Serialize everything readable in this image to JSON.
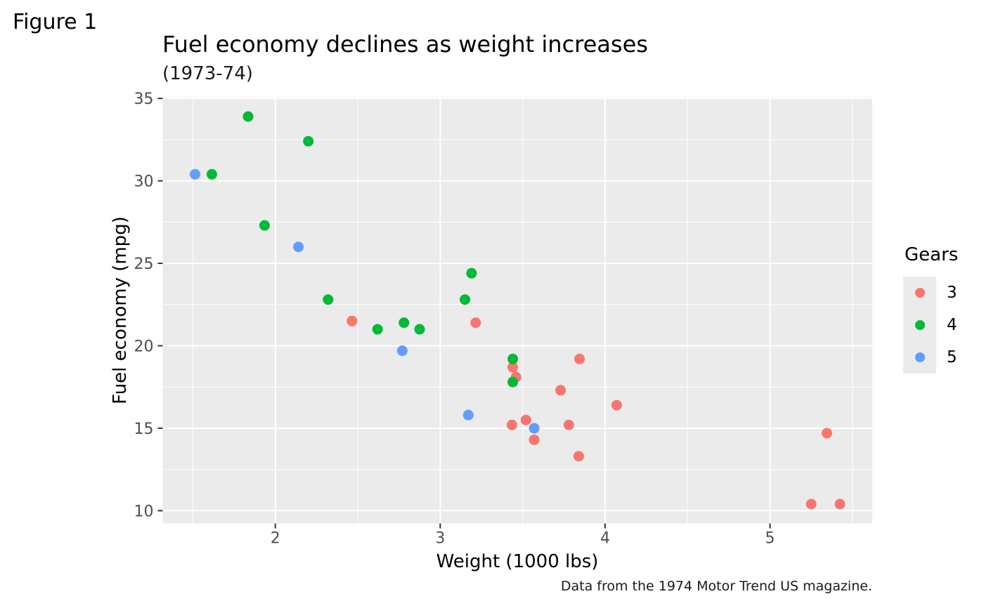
{
  "figure_tag": "Figure 1",
  "chart_data": {
    "type": "scatter",
    "title": "Fuel economy declines as weight increases",
    "subtitle": "(1973-74)",
    "caption": "Data from the 1974 Motor Trend US magazine.",
    "xlabel": "Weight (1000 lbs)",
    "ylabel": "Fuel economy (mpg)",
    "x_domain": [
      1.317,
      5.62
    ],
    "y_domain": [
      9.225,
      35.075
    ],
    "x_ticks": [
      "2",
      "3",
      "4",
      "5"
    ],
    "x_tick_values": [
      2,
      3,
      4,
      5
    ],
    "y_ticks": [
      "10",
      "15",
      "20",
      "25",
      "30",
      "35"
    ],
    "y_tick_values": [
      10,
      15,
      20,
      25,
      30,
      35
    ],
    "x_minor": [
      1.5,
      2.5,
      3.5,
      4.5,
      5.5
    ],
    "y_minor": [
      12.5,
      17.5,
      22.5,
      27.5,
      32.5
    ],
    "grid": true,
    "panel_bg": "#EBEBEB",
    "grid_color": "#FFFFFF",
    "tick_label_color": "#4d4d4d",
    "tick_mark_color": "#333333",
    "legend": {
      "title": "Gears",
      "position": "right"
    },
    "series": [
      {
        "name": "3",
        "color": "#F8766D",
        "points": [
          [
            2.465,
            21.5
          ],
          [
            3.215,
            21.4
          ],
          [
            3.44,
            18.7
          ],
          [
            3.46,
            18.1
          ],
          [
            3.57,
            14.3
          ],
          [
            4.07,
            16.4
          ],
          [
            3.73,
            17.3
          ],
          [
            3.78,
            15.2
          ],
          [
            5.25,
            10.4
          ],
          [
            5.424,
            10.4
          ],
          [
            5.345,
            14.7
          ],
          [
            3.52,
            15.5
          ],
          [
            3.435,
            15.2
          ],
          [
            3.84,
            13.3
          ],
          [
            3.845,
            19.2
          ]
        ]
      },
      {
        "name": "4",
        "color": "#00BA38",
        "points": [
          [
            2.62,
            21.0
          ],
          [
            2.875,
            21.0
          ],
          [
            2.32,
            22.8
          ],
          [
            3.19,
            24.4
          ],
          [
            3.15,
            22.8
          ],
          [
            3.44,
            19.2
          ],
          [
            3.44,
            17.8
          ],
          [
            2.2,
            32.4
          ],
          [
            1.615,
            30.4
          ],
          [
            1.835,
            33.9
          ],
          [
            1.935,
            27.3
          ],
          [
            2.78,
            21.4
          ]
        ]
      },
      {
        "name": "5",
        "color": "#619CFF",
        "points": [
          [
            2.14,
            26.0
          ],
          [
            1.513,
            30.4
          ],
          [
            3.17,
            15.8
          ],
          [
            2.77,
            19.7
          ],
          [
            3.57,
            15.0
          ]
        ]
      }
    ]
  }
}
